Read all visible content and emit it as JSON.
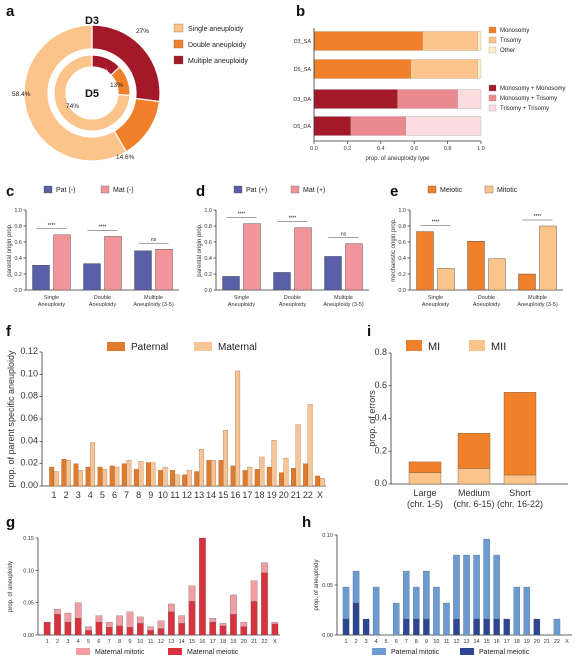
{
  "panels": {
    "a": "a",
    "b": "b",
    "c": "c",
    "d": "d",
    "e": "e",
    "f": "f",
    "g": "g",
    "h": "h",
    "i": "i"
  },
  "colors": {
    "single": "#fbc48b",
    "double": "#f0802a",
    "multiple": "#a3192a",
    "monosomy": "#f0802a",
    "trisomy": "#fbc48b",
    "other": "#f9f0c8",
    "mono_mono": "#a3192a",
    "mono_tri": "#ea8a8f",
    "tri_tri": "#fbdde0",
    "pat": "#5a5fa8",
    "mat": "#f1959a",
    "meiotic": "#f0802a",
    "mitotic": "#fbc48b",
    "paternal": "#de7b2e",
    "maternal": "#f5c497",
    "mat_mitotic": "#f09ea4",
    "mat_meiotic": "#d8323f",
    "pat_mitotic": "#6b9bd2",
    "pat_meiotic": "#2e4690",
    "axis": "#333333"
  },
  "chart_data": [
    {
      "id": "a",
      "type": "pie",
      "subtype": "nested-donut",
      "categories": [
        "Single aneuploidy",
        "Double aneuploidy",
        "Multiple aneuploidy"
      ],
      "series": [
        {
          "name": "D3",
          "values": [
            58.4,
            14.6,
            27.0
          ],
          "labels": [
            "58.4%",
            "14.6%",
            "27%"
          ]
        },
        {
          "name": "D5",
          "values": [
            74,
            13,
            13
          ],
          "labels": [
            "74%",
            "13%",
            "13%"
          ]
        }
      ]
    },
    {
      "id": "b",
      "type": "bar",
      "orientation": "horizontal",
      "stacked": true,
      "categories": [
        "D3_SA",
        "D5_SA",
        "D3_DA",
        "D5_DA"
      ],
      "xlabel": "prop. of aneuploidy type",
      "xlim": [
        0,
        1.0
      ],
      "xticks": [
        "0.0",
        "0.2",
        "0.4",
        "0.6",
        "0.8",
        "1.0"
      ],
      "legend_groups": [
        [
          "Monosomy",
          "Trisomy",
          "Other"
        ],
        [
          "Monosomy + Monosomy",
          "Monosomy + Trisomy",
          "Trisomy + Trisomy"
        ]
      ],
      "series": [
        {
          "name": "Monosomy",
          "values": [
            0.65,
            0.58,
            0,
            0
          ]
        },
        {
          "name": "Trisomy",
          "values": [
            0.33,
            0.4,
            0,
            0
          ]
        },
        {
          "name": "Other",
          "values": [
            0.02,
            0.02,
            0,
            0
          ]
        },
        {
          "name": "Monosomy + Monosomy",
          "values": [
            0,
            0,
            0.5,
            0.22
          ]
        },
        {
          "name": "Monosomy + Trisomy",
          "values": [
            0,
            0,
            0.36,
            0.33
          ]
        },
        {
          "name": "Trisomy + Trisomy",
          "values": [
            0,
            0,
            0.14,
            0.45
          ]
        }
      ]
    },
    {
      "id": "c",
      "type": "bar",
      "ylabel": "parental origin prop.",
      "ylim": [
        0,
        1.0
      ],
      "yticks": [
        "0.0",
        "0.2",
        "0.4",
        "0.6",
        "0.8",
        "1.0"
      ],
      "categories": [
        [
          "Single",
          "Aneuploidy"
        ],
        [
          "Double",
          "Aneuploidy"
        ],
        [
          "Multiple",
          "Aneuploidy (3-5)"
        ]
      ],
      "series": [
        {
          "name": "Pat (-)",
          "values": [
            0.31,
            0.33,
            0.49
          ]
        },
        {
          "name": "Mat (-)",
          "values": [
            0.69,
            0.67,
            0.51
          ]
        }
      ],
      "annotations": [
        "****",
        "****",
        "ns"
      ]
    },
    {
      "id": "d",
      "type": "bar",
      "ylabel": "parental origin prop.",
      "ylim": [
        0,
        1.0
      ],
      "yticks": [
        "0.0",
        "0.2",
        "0.4",
        "0.6",
        "0.8",
        "1.0"
      ],
      "categories": [
        [
          "Single",
          "Aneuploidy"
        ],
        [
          "Double",
          "Aneuploidy"
        ],
        [
          "Multiple",
          "Aneuploidy (3-5)"
        ]
      ],
      "series": [
        {
          "name": "Pat (+)",
          "values": [
            0.17,
            0.22,
            0.42
          ]
        },
        {
          "name": "Mat (+)",
          "values": [
            0.83,
            0.78,
            0.58
          ]
        }
      ],
      "annotations": [
        "****",
        "****",
        "ns"
      ]
    },
    {
      "id": "e",
      "type": "bar",
      "ylabel": "mechanistic origin prop.",
      "ylim": [
        0,
        1.0
      ],
      "yticks": [
        "0.0",
        "0.2",
        "0.4",
        "0.6",
        "0.8",
        "1.0"
      ],
      "categories": [
        [
          "Single",
          "Aneuploidy"
        ],
        [
          "Double",
          "Aneuploidy"
        ],
        [
          "Multiple",
          "Aneuploidy (3-5)"
        ]
      ],
      "series": [
        {
          "name": "Meiotic",
          "values": [
            0.73,
            0.61,
            0.2
          ]
        },
        {
          "name": "Mitotic",
          "values": [
            0.27,
            0.39,
            0.8
          ]
        }
      ],
      "annotations": [
        "****",
        "",
        "****"
      ]
    },
    {
      "id": "f",
      "type": "bar",
      "ylabel": "prop. of parent specific aneuploidy",
      "ylim": [
        0,
        0.12
      ],
      "yticks": [
        "0.00",
        "0.02",
        "0.04",
        "0.06",
        "0.08",
        "0.10",
        "0.12"
      ],
      "categories": [
        "1",
        "2",
        "3",
        "4",
        "5",
        "6",
        "7",
        "8",
        "9",
        "10",
        "11",
        "12",
        "13",
        "14",
        "15",
        "16",
        "17",
        "18",
        "19",
        "20",
        "21",
        "22",
        "X"
      ],
      "series": [
        {
          "name": "Paternal",
          "values": [
            0.017,
            0.024,
            0.02,
            0.017,
            0.017,
            0.018,
            0.02,
            0.015,
            0.021,
            0.014,
            0.014,
            0.01,
            0.013,
            0.023,
            0.023,
            0.018,
            0.014,
            0.015,
            0.017,
            0.012,
            0.016,
            0.02,
            0.009
          ]
        },
        {
          "name": "Maternal",
          "values": [
            0.013,
            0.023,
            0.014,
            0.039,
            0.015,
            0.017,
            0.023,
            0.022,
            0.021,
            0.017,
            0.01,
            0.014,
            0.033,
            0.023,
            0.05,
            0.103,
            0.017,
            0.026,
            0.041,
            0.025,
            0.055,
            0.073,
            0.007
          ]
        }
      ]
    },
    {
      "id": "g",
      "type": "bar",
      "stacked": true,
      "ylabel": "prop. of aneuploidy",
      "ylim": [
        0,
        0.15
      ],
      "yticks": [
        "0.00",
        "0.05",
        "0.10",
        "0.15"
      ],
      "categories": [
        "1",
        "2",
        "3",
        "4",
        "5",
        "6",
        "7",
        "8",
        "9",
        "10",
        "11",
        "12",
        "13",
        "14",
        "15",
        "16",
        "17",
        "18",
        "19",
        "20",
        "21",
        "22",
        "X"
      ],
      "series": [
        {
          "name": "Maternal meiotic",
          "values": [
            0.02,
            0.032,
            0.02,
            0.026,
            0.007,
            0.02,
            0.012,
            0.014,
            0.012,
            0.018,
            0.007,
            0.01,
            0.036,
            0.018,
            0.052,
            0.15,
            0.02,
            0.014,
            0.032,
            0.013,
            0.052,
            0.096,
            0.017
          ]
        },
        {
          "name": "Maternal mitotic",
          "values": [
            0.0,
            0.008,
            0.014,
            0.024,
            0.006,
            0.01,
            0.008,
            0.016,
            0.024,
            0.01,
            0.006,
            0.012,
            0.012,
            0.012,
            0.024,
            0.0,
            0.006,
            0.004,
            0.03,
            0.007,
            0.032,
            0.016,
            0.003
          ]
        }
      ]
    },
    {
      "id": "h",
      "type": "bar",
      "stacked": true,
      "ylabel": "prop. of aneuploidy",
      "ylim": [
        0,
        0.1
      ],
      "yticks": [
        "0.00",
        "0.05",
        "0.10"
      ],
      "categories": [
        "1",
        "2",
        "3",
        "4",
        "5",
        "6",
        "7",
        "8",
        "9",
        "10",
        "11",
        "12",
        "13",
        "14",
        "15",
        "16",
        "17",
        "18",
        "19",
        "20",
        "21",
        "22",
        "X"
      ],
      "series": [
        {
          "name": "Paternal meiotic",
          "values": [
            0.016,
            0.032,
            0.016,
            0.0,
            0.0,
            0.0,
            0.016,
            0.016,
            0.016,
            0.0,
            0.0,
            0.016,
            0.0,
            0.016,
            0.016,
            0.016,
            0.016,
            0.0,
            0.0,
            0.016,
            0.0,
            0.0,
            0.0
          ]
        },
        {
          "name": "Paternal mitotic",
          "values": [
            0.032,
            0.032,
            0.0,
            0.048,
            0.0,
            0.032,
            0.048,
            0.032,
            0.048,
            0.048,
            0.032,
            0.064,
            0.08,
            0.064,
            0.08,
            0.064,
            0.0,
            0.048,
            0.048,
            0.0,
            0.0,
            0.016,
            0.0
          ]
        }
      ]
    },
    {
      "id": "i",
      "type": "bar",
      "stacked": true,
      "ylabel": "prop. of errors",
      "ylim": [
        0,
        0.8
      ],
      "yticks": [
        "0.0",
        "0.2",
        "0.4",
        "0.6",
        "0.8"
      ],
      "categories": [
        [
          "Large",
          "(chr. 1-5)"
        ],
        [
          "Medium",
          "(chr. 6-15)"
        ],
        [
          "Short",
          "(chr. 16-22)"
        ]
      ],
      "series": [
        {
          "name": "MII",
          "values": [
            0.07,
            0.095,
            0.055
          ]
        },
        {
          "name": "MI",
          "values": [
            0.065,
            0.215,
            0.505
          ]
        }
      ],
      "legend": [
        "MI",
        "MII"
      ]
    }
  ]
}
